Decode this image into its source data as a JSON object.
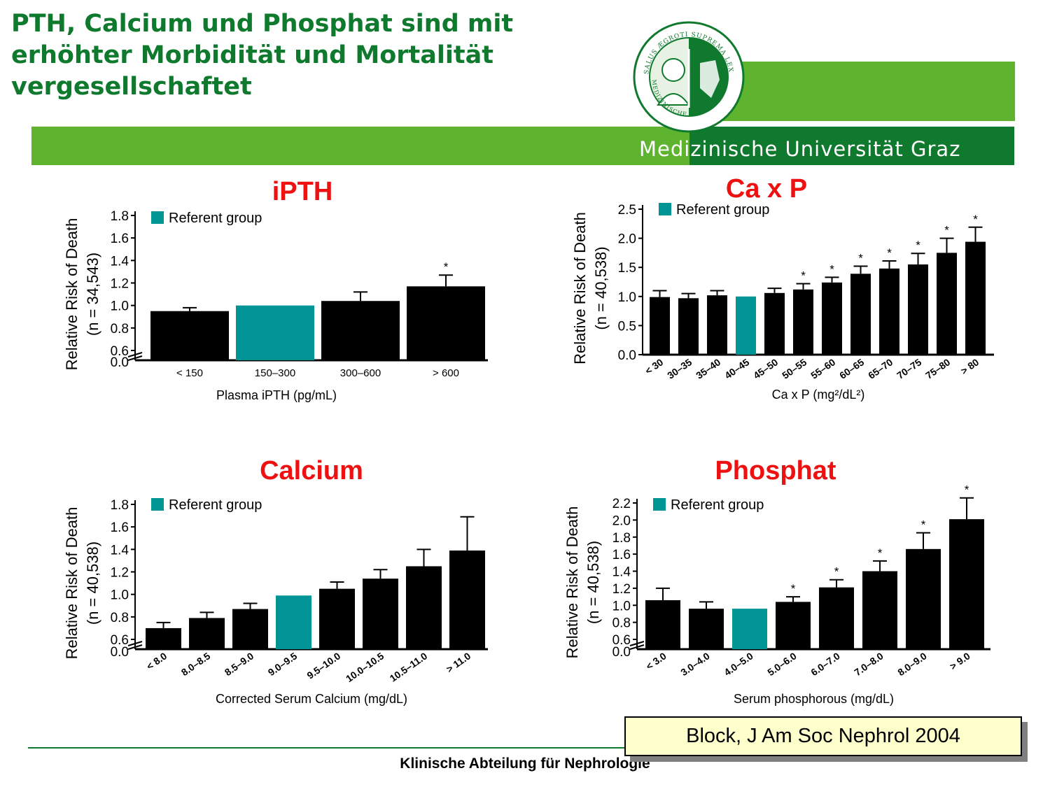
{
  "slide": {
    "title_lines": [
      "PTH, Calcium und Phosphat sind mit",
      "erhöhter Morbidität und Mortalität",
      "vergesellschaftet"
    ],
    "institution": "Medizinische Universität Graz",
    "seal_text": "SALUS ÆGROTI SUPREMA LEX · MEDIZINISCHE UNIVERSITÄT GRAZ",
    "footer": "Klinische Abteilung für Nephrologie",
    "citation": "Block, J Am Soc Nephrol 2004"
  },
  "colors": {
    "brand_green": "#5eb32f",
    "dark_green": "#0f7a2e",
    "title_red": "#ee1111",
    "bar_black": "#000000",
    "referent_teal": "#009494"
  },
  "chart_data": [
    {
      "type": "bar",
      "title": "iPTH",
      "ylabel": "Relative Risk of Death",
      "ylabel2": "(n = 34,543)",
      "xlabel": "Plasma iPTH (pg/mL)",
      "legend": "Referent group",
      "legend_position": "top-left",
      "x_rotated": false,
      "axis_break": true,
      "ylim": [
        0.6,
        1.8
      ],
      "yticks": [
        0.6,
        0.8,
        1.0,
        1.2,
        1.4,
        1.6,
        1.8
      ],
      "ytick_labels": [
        "0.6",
        "0.8",
        "1.0",
        "1.2",
        "1.4",
        "1.6",
        "1.8"
      ],
      "ybreak_label": "0.0",
      "categories": [
        "< 150",
        "150–300",
        "300–600",
        "> 600"
      ],
      "values": [
        0.95,
        1.0,
        1.04,
        1.17
      ],
      "error_upper": [
        0.98,
        null,
        1.12,
        1.27
      ],
      "significant": [
        false,
        false,
        false,
        true
      ],
      "referent_index": 1
    },
    {
      "type": "bar",
      "title": "Ca x P",
      "ylabel": "Relative Risk of Death",
      "ylabel2": "(n = 40,538)",
      "xlabel": "Ca x P (mg²/dL²)",
      "legend": "Referent group",
      "legend_position": "top-left",
      "x_rotated": true,
      "axis_break": false,
      "ylim": [
        0.0,
        2.5
      ],
      "yticks": [
        0.0,
        0.5,
        1.0,
        1.5,
        2.0,
        2.5
      ],
      "ytick_labels": [
        "0.0",
        "0.5",
        "1.0",
        "1.5",
        "2.0",
        "2.5"
      ],
      "categories": [
        "< 30",
        "30–35",
        "35–40",
        "40–45",
        "45–50",
        "50–55",
        "55–60",
        "60–65",
        "65–70",
        "70–75",
        "75–80",
        "> 80"
      ],
      "values": [
        0.99,
        0.97,
        1.02,
        1.0,
        1.06,
        1.12,
        1.24,
        1.39,
        1.48,
        1.55,
        1.75,
        1.94
      ],
      "error_upper": [
        1.1,
        1.05,
        1.1,
        null,
        1.14,
        1.22,
        1.33,
        1.52,
        1.61,
        1.74,
        2.0,
        2.19
      ],
      "significant": [
        false,
        false,
        false,
        false,
        false,
        true,
        true,
        true,
        true,
        true,
        true,
        true
      ],
      "referent_index": 3
    },
    {
      "type": "bar",
      "title": "Calcium",
      "ylabel": "Relative Risk of Death",
      "ylabel2": "(n = 40,538)",
      "xlabel": "Corrected Serum Calcium (mg/dL)",
      "legend": "Referent group",
      "legend_position": "top-left",
      "x_rotated": true,
      "axis_break": true,
      "ylim": [
        0.6,
        1.8
      ],
      "yticks": [
        0.6,
        0.8,
        1.0,
        1.2,
        1.4,
        1.6,
        1.8
      ],
      "ytick_labels": [
        "0.6",
        "0.8",
        "1.0",
        "1.2",
        "1.4",
        "1.6",
        "1.8"
      ],
      "ybreak_label": "0.0",
      "categories": [
        "< 8.0",
        "8.0–8.5",
        "8.5–9.0",
        "9.0–9.5",
        "9.5–10.0",
        "10.0–10.5",
        "10.5–11.0",
        "> 11.0"
      ],
      "values": [
        0.7,
        0.79,
        0.87,
        0.99,
        1.05,
        1.14,
        1.25,
        1.39
      ],
      "error_upper": [
        0.75,
        0.84,
        0.92,
        null,
        1.11,
        1.22,
        1.4,
        1.69
      ],
      "significant": [
        false,
        false,
        false,
        false,
        false,
        false,
        false,
        false
      ],
      "referent_index": 3
    },
    {
      "type": "bar",
      "title": "Phosphat",
      "ylabel": "Relative Risk of Death",
      "ylabel2": "(n = 40,538)",
      "xlabel": "Serum phosphorous (mg/dL)",
      "legend": "Referent group",
      "legend_position": "top-left",
      "x_rotated": true,
      "axis_break": true,
      "ylim": [
        0.6,
        2.2
      ],
      "yticks": [
        0.6,
        0.8,
        1.0,
        1.2,
        1.4,
        1.6,
        1.8,
        2.0,
        2.2
      ],
      "ytick_labels": [
        "0.6",
        "0.8",
        "1.0",
        "1.2",
        "1.4",
        "1.6",
        "1.8",
        "2.0",
        "2.2"
      ],
      "ybreak_label": "0.0",
      "categories": [
        "< 3.0",
        "3.0–4.0",
        "4.0–5.0",
        "5.0–6.0",
        "6.0–7.0",
        "7.0–8.0",
        "8.0–9.0",
        "> 9.0"
      ],
      "values": [
        1.06,
        0.96,
        0.96,
        1.04,
        1.21,
        1.4,
        1.66,
        2.01
      ],
      "error_upper": [
        1.2,
        1.04,
        null,
        1.1,
        1.3,
        1.52,
        1.85,
        2.26
      ],
      "significant": [
        false,
        false,
        false,
        true,
        true,
        true,
        true,
        true
      ],
      "referent_index": 2
    }
  ]
}
